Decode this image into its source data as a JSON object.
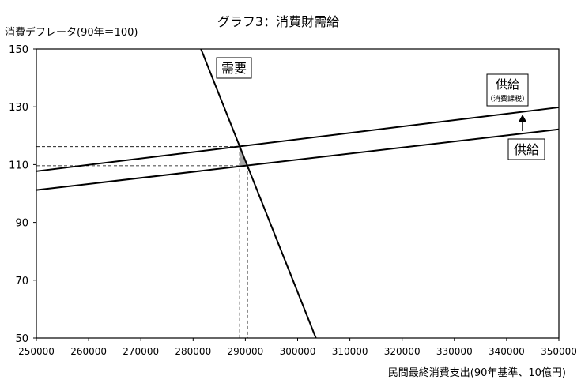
{
  "chart_data": {
    "type": "line",
    "title": "グラフ3：消費財需給",
    "ylabel": "消費デフレータ(90年＝100)",
    "xlabel": "民間最終消費支出(90年基準、10億円)",
    "xlim": [
      250000,
      350000
    ],
    "ylim": [
      50,
      150
    ],
    "x_ticks": [
      "250000",
      "260000",
      "270000",
      "280000",
      "290000",
      "300000",
      "310000",
      "320000",
      "330000",
      "340000",
      "350000"
    ],
    "y_ticks": [
      "50",
      "70",
      "90",
      "110",
      "130",
      "150"
    ],
    "grid": false,
    "legend": "none",
    "series": [
      {
        "name": "需要",
        "color": "#000000",
        "x": [
          281500,
          303500
        ],
        "y": [
          150,
          50
        ]
      },
      {
        "name": "供給",
        "color": "#000000",
        "x": [
          250000,
          350000
        ],
        "y": [
          101.2,
          122.2
        ]
      },
      {
        "name": "供給(消費課税)",
        "color": "#000000",
        "x": [
          250000,
          350000
        ],
        "y": [
          107.7,
          129.8
        ]
      }
    ],
    "equilibria": [
      {
        "label": "before_tax",
        "x": 290400,
        "y": 109.6
      },
      {
        "label": "after_tax",
        "x": 288900,
        "y": 116.2
      }
    ],
    "annotations": {
      "demand": "需要",
      "supply": "供給",
      "supply_taxed_line1": "供給",
      "supply_taxed_line2": "（消費課税）"
    }
  }
}
